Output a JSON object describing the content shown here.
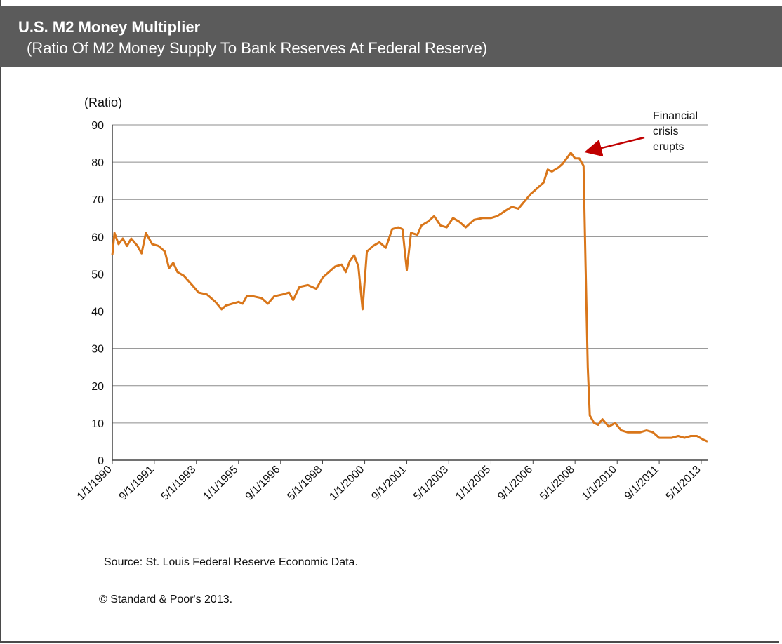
{
  "header": {
    "title": "U.S. M2 Money Multiplier",
    "subtitle": "(Ratio Of M2 Money Supply To Bank Reserves  At Federal Reserve)"
  },
  "footer": {
    "source": "Source: St. Louis Federal Reserve Economic Data.",
    "copyright": "© Standard & Poor's 2013."
  },
  "colors": {
    "line": "#d9761a",
    "arrow": "#c00000",
    "grid": "#8c8c8c",
    "header_bg": "#5b5b5b"
  },
  "chart_data": {
    "type": "line",
    "title": "U.S. M2 Money Multiplier",
    "ylabel": "(Ratio)",
    "ylim": [
      0,
      90
    ],
    "yticks": [
      0,
      10,
      20,
      30,
      40,
      50,
      60,
      70,
      80,
      90
    ],
    "xlim": [
      "1990-01-01",
      "2013-08-01"
    ],
    "xtick_labels": [
      "1/1/1990",
      "9/1/1991",
      "5/1/1993",
      "1/1/1995",
      "9/1/1996",
      "5/1/1998",
      "1/1/2000",
      "9/1/2001",
      "5/1/2003",
      "1/1/2005",
      "9/1/2006",
      "5/1/2008",
      "1/1/2010",
      "9/1/2011",
      "5/1/2013"
    ],
    "xtick_dates": [
      "1990-01-01",
      "1991-09-01",
      "1993-05-01",
      "1995-01-01",
      "1996-09-01",
      "1998-05-01",
      "2000-01-01",
      "2001-09-01",
      "2003-05-01",
      "2005-01-01",
      "2006-09-01",
      "2008-05-01",
      "2010-01-01",
      "2011-09-01",
      "2013-05-01"
    ],
    "grid": true,
    "annotation": {
      "text_lines": [
        "Financial",
        "crisis",
        "erupts"
      ],
      "x": "2008-05-01",
      "y": 81
    },
    "series": [
      {
        "points": [
          [
            "1990-01-01",
            55
          ],
          [
            "1990-02-01",
            61
          ],
          [
            "1990-04-01",
            58
          ],
          [
            "1990-06-01",
            59.5
          ],
          [
            "1990-08-01",
            57.5
          ],
          [
            "1990-10-01",
            59.5
          ],
          [
            "1991-01-01",
            57.5
          ],
          [
            "1991-03-01",
            55.5
          ],
          [
            "1991-05-01",
            61
          ],
          [
            "1991-08-01",
            58
          ],
          [
            "1991-11-01",
            57.5
          ],
          [
            "1992-02-01",
            56
          ],
          [
            "1992-04-01",
            51.5
          ],
          [
            "1992-06-01",
            53
          ],
          [
            "1992-08-01",
            50.5
          ],
          [
            "1992-11-01",
            49.5
          ],
          [
            "1993-03-01",
            47
          ],
          [
            "1993-06-01",
            45
          ],
          [
            "1993-10-01",
            44.5
          ],
          [
            "1994-02-01",
            42.5
          ],
          [
            "1994-05-01",
            40.5
          ],
          [
            "1994-07-01",
            41.5
          ],
          [
            "1994-10-01",
            42
          ],
          [
            "1995-01-01",
            42.5
          ],
          [
            "1995-03-01",
            42
          ],
          [
            "1995-05-01",
            44
          ],
          [
            "1995-08-01",
            44
          ],
          [
            "1995-12-01",
            43.5
          ],
          [
            "1996-03-01",
            42
          ],
          [
            "1996-06-01",
            44
          ],
          [
            "1996-10-01",
            44.5
          ],
          [
            "1997-01-01",
            45
          ],
          [
            "1997-03-01",
            43
          ],
          [
            "1997-06-01",
            46.5
          ],
          [
            "1997-10-01",
            47
          ],
          [
            "1998-02-01",
            46
          ],
          [
            "1998-05-01",
            49
          ],
          [
            "1998-08-01",
            50.5
          ],
          [
            "1998-11-01",
            52
          ],
          [
            "1999-02-01",
            52.5
          ],
          [
            "1999-04-01",
            50.5
          ],
          [
            "1999-06-01",
            53.5
          ],
          [
            "1999-08-01",
            55
          ],
          [
            "1999-10-01",
            52
          ],
          [
            "1999-12-01",
            40.5
          ],
          [
            "2000-02-01",
            56
          ],
          [
            "2000-05-01",
            57.5
          ],
          [
            "2000-08-01",
            58.5
          ],
          [
            "2000-11-01",
            57
          ],
          [
            "2001-02-01",
            62
          ],
          [
            "2001-05-01",
            62.5
          ],
          [
            "2001-07-01",
            62
          ],
          [
            "2001-09-01",
            51
          ],
          [
            "2001-11-01",
            61
          ],
          [
            "2002-02-01",
            60.5
          ],
          [
            "2002-04-01",
            63
          ],
          [
            "2002-07-01",
            64
          ],
          [
            "2002-10-01",
            65.5
          ],
          [
            "2003-01-01",
            63
          ],
          [
            "2003-04-01",
            62.5
          ],
          [
            "2003-07-01",
            65
          ],
          [
            "2003-10-01",
            64
          ],
          [
            "2004-01-01",
            62.5
          ],
          [
            "2004-05-01",
            64.5
          ],
          [
            "2004-09-01",
            65
          ],
          [
            "2005-01-01",
            65
          ],
          [
            "2005-04-01",
            65.5
          ],
          [
            "2005-08-01",
            67
          ],
          [
            "2005-11-01",
            68
          ],
          [
            "2006-02-01",
            67.5
          ],
          [
            "2006-05-01",
            69.5
          ],
          [
            "2006-08-01",
            71.5
          ],
          [
            "2006-11-01",
            73
          ],
          [
            "2007-02-01",
            74.5
          ],
          [
            "2007-04-01",
            78
          ],
          [
            "2007-06-01",
            77.5
          ],
          [
            "2007-09-01",
            78.5
          ],
          [
            "2007-11-01",
            79.5
          ],
          [
            "2008-01-01",
            81
          ],
          [
            "2008-03-01",
            82.5
          ],
          [
            "2008-05-01",
            81
          ],
          [
            "2008-07-01",
            81
          ],
          [
            "2008-09-01",
            79
          ],
          [
            "2008-10-01",
            52
          ],
          [
            "2008-11-01",
            25
          ],
          [
            "2008-12-01",
            12
          ],
          [
            "2009-02-01",
            10
          ],
          [
            "2009-04-01",
            9.5
          ],
          [
            "2009-06-01",
            11
          ],
          [
            "2009-09-01",
            9
          ],
          [
            "2009-12-01",
            10
          ],
          [
            "2010-03-01",
            8
          ],
          [
            "2010-06-01",
            7.5
          ],
          [
            "2010-09-01",
            7.5
          ],
          [
            "2010-12-01",
            7.5
          ],
          [
            "2011-03-01",
            8
          ],
          [
            "2011-06-01",
            7.5
          ],
          [
            "2011-09-01",
            6
          ],
          [
            "2011-12-01",
            6
          ],
          [
            "2012-03-01",
            6
          ],
          [
            "2012-06-01",
            6.5
          ],
          [
            "2012-09-01",
            6
          ],
          [
            "2012-12-01",
            6.5
          ],
          [
            "2013-03-01",
            6.5
          ],
          [
            "2013-06-01",
            5.5
          ],
          [
            "2013-08-01",
            5
          ]
        ]
      }
    ]
  }
}
